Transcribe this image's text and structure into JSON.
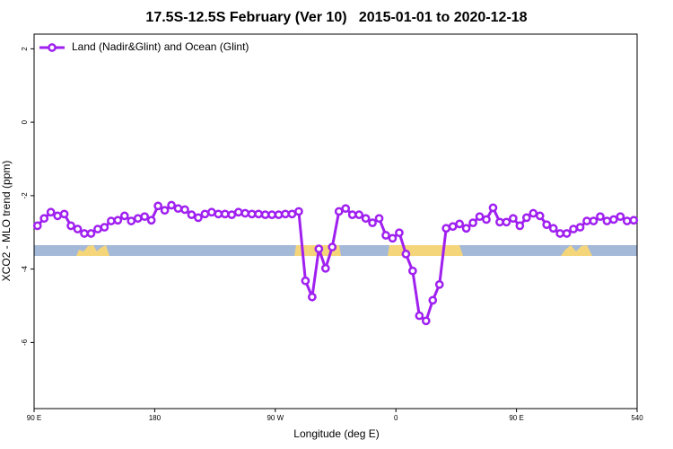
{
  "chart_data": {
    "type": "line",
    "title": "17.5S-12.5S February (Ver 10)   2015-01-01 to 2020-12-18",
    "x_label": "Longitude (deg E)",
    "y_label": "XCO2 - MLO trend (ppm)",
    "x": [
      92.5,
      97.5,
      102.5,
      107.5,
      112.5,
      117.5,
      122.5,
      127.5,
      132.5,
      137.5,
      142.5,
      147.5,
      152.5,
      157.5,
      162.5,
      167.5,
      172.5,
      177.5,
      182.5,
      187.5,
      192.5,
      197.5,
      202.5,
      207.5,
      212.5,
      217.5,
      222.5,
      227.5,
      232.5,
      237.5,
      242.5,
      247.5,
      252.5,
      257.5,
      262.5,
      267.5,
      272.5,
      277.5,
      282.5,
      287.5,
      292.5,
      297.5,
      302.5,
      307.5,
      312.5,
      317.5,
      322.5,
      327.5,
      332.5,
      337.5,
      342.5,
      347.5,
      352.5,
      357.5,
      362.5,
      367.5,
      372.5,
      377.5,
      382.5,
      387.5,
      392.5,
      397.5,
      402.5,
      407.5,
      412.5,
      417.5,
      422.5,
      427.5,
      432.5,
      437.5,
      442.5,
      447.5,
      452.5,
      457.5,
      462.5,
      467.5,
      472.5,
      477.5,
      482.5,
      487.5,
      492.5,
      497.5,
      502.5,
      507.5,
      512.5,
      517.5,
      522.5,
      527.5,
      532.5,
      537.5
    ],
    "series": [
      {
        "name": "Land (Nadir&Glint) and Ocean (Glint)",
        "color": "#a020f0",
        "values": [
          -2.82,
          -2.62,
          -2.45,
          -2.55,
          -2.5,
          -2.82,
          -2.91,
          -3.03,
          -3.03,
          -2.91,
          -2.86,
          -2.69,
          -2.67,
          -2.55,
          -2.69,
          -2.62,
          -2.57,
          -2.67,
          -2.28,
          -2.4,
          -2.26,
          -2.35,
          -2.38,
          -2.52,
          -2.6,
          -2.5,
          -2.45,
          -2.5,
          -2.5,
          -2.52,
          -2.45,
          -2.48,
          -2.5,
          -2.5,
          -2.52,
          -2.52,
          -2.52,
          -2.5,
          -2.5,
          -2.43,
          -4.32,
          -4.76,
          -3.45,
          -3.98,
          -3.4,
          -2.43,
          -2.35,
          -2.52,
          -2.52,
          -2.62,
          -2.74,
          -2.62,
          -3.08,
          -3.16,
          -3.01,
          -3.59,
          -4.05,
          -5.27,
          -5.41,
          -4.85,
          -4.42,
          -2.89,
          -2.84,
          -2.77,
          -2.89,
          -2.74,
          -2.57,
          -2.65,
          -2.33,
          -2.72,
          -2.72,
          -2.62,
          -2.82,
          -2.6,
          -2.48,
          -2.55,
          -2.79,
          -2.89,
          -3.03,
          -3.03,
          -2.91,
          -2.86,
          -2.69,
          -2.69,
          -2.57,
          -2.69,
          -2.65,
          -2.57,
          -2.69,
          -2.67
        ]
      }
    ],
    "xlim": [
      90,
      540
    ],
    "ylim": [
      -7.8,
      2.4
    ],
    "xticks": [
      {
        "value": 90,
        "label": "90 E"
      },
      180,
      {
        "value": 270,
        "label": "90 W"
      },
      {
        "value": 360,
        "label": "0"
      },
      {
        "value": 450,
        "label": "90 E"
      },
      540
    ],
    "yticks": [
      2,
      0,
      -2,
      -4,
      -6
    ],
    "legend": "top-left"
  }
}
